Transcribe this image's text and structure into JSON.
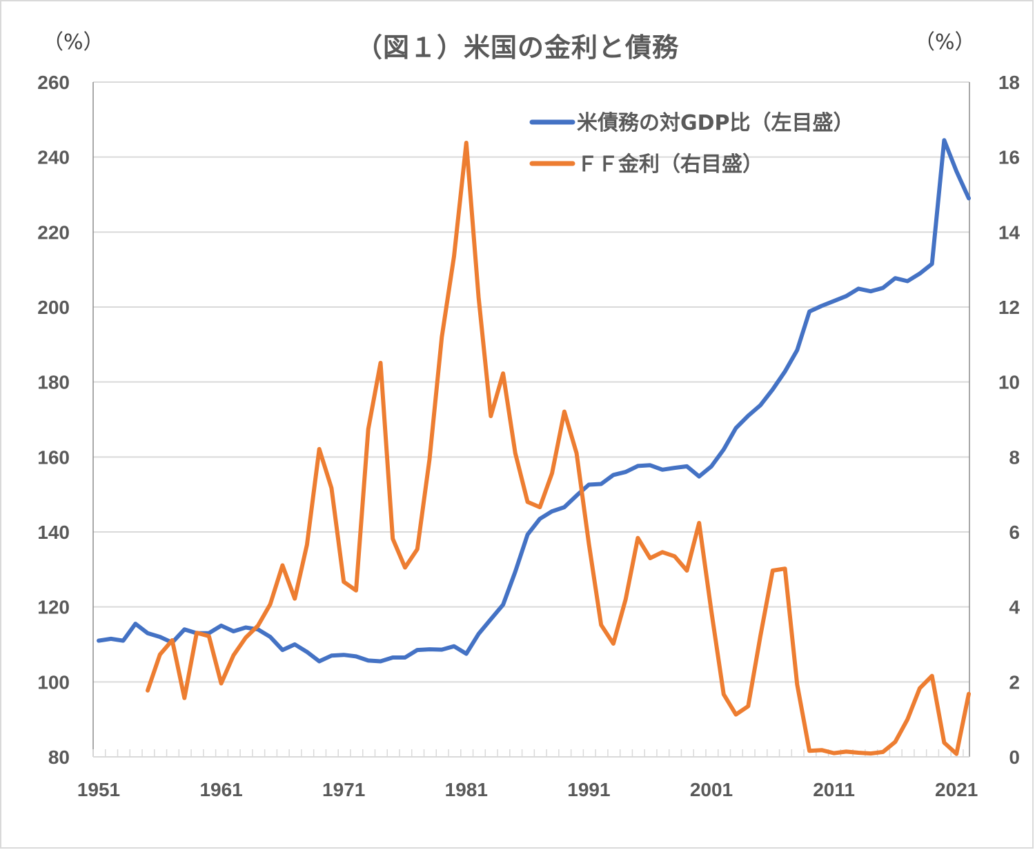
{
  "title": "（図１）米国の金利と債務",
  "left_unit": "（%）",
  "right_unit": "（%）",
  "legend": [
    {
      "label": "米債務の対GDP比（左目盛）",
      "color": "#4472c4"
    },
    {
      "label": "ＦＦ金利（右目盛）",
      "color": "#ed7d31"
    }
  ],
  "colors": {
    "debt": "#4472c4",
    "ff": "#ed7d31",
    "grid": "#d9d9d9",
    "axis_text": "#595959"
  },
  "chart_data": {
    "type": "line",
    "title": "（図１）米国の金利と債務",
    "xlabel": "",
    "ylabel_left": "（%）",
    "ylabel_right": "（%）",
    "ylim_left": [
      80,
      260
    ],
    "ylim_right": [
      0,
      18
    ],
    "yticks_left": [
      80,
      100,
      120,
      140,
      160,
      180,
      200,
      220,
      240,
      260
    ],
    "yticks_right": [
      0,
      2,
      4,
      6,
      8,
      10,
      12,
      14,
      16,
      18
    ],
    "xtick_labels": [
      "1951",
      "1961",
      "1971",
      "1981",
      "1991",
      "2001",
      "2011",
      "2021"
    ],
    "grid": "horizontal",
    "legend_position": "upper right inside",
    "x": [
      1951,
      1952,
      1953,
      1954,
      1955,
      1956,
      1957,
      1958,
      1959,
      1960,
      1961,
      1962,
      1963,
      1964,
      1965,
      1966,
      1967,
      1968,
      1969,
      1970,
      1971,
      1972,
      1973,
      1974,
      1975,
      1976,
      1977,
      1978,
      1979,
      1980,
      1981,
      1982,
      1983,
      1984,
      1985,
      1986,
      1987,
      1988,
      1989,
      1990,
      1991,
      1992,
      1993,
      1994,
      1995,
      1996,
      1997,
      1998,
      1999,
      2000,
      2001,
      2002,
      2003,
      2004,
      2005,
      2006,
      2007,
      2008,
      2009,
      2010,
      2011,
      2012,
      2013,
      2014,
      2015,
      2016,
      2017,
      2018,
      2019,
      2020,
      2021,
      2022
    ],
    "series": [
      {
        "name": "米債務の対GDP比（左目盛）",
        "axis": "left",
        "values": [
          111,
          111.5,
          111,
          115.5,
          113,
          112,
          110.5,
          114,
          113,
          113,
          115,
          113.5,
          114.5,
          114,
          112,
          108.5,
          110,
          108,
          105.5,
          107,
          107.2,
          106.8,
          105.7,
          105.5,
          106.5,
          106.5,
          108.5,
          108.7,
          108.6,
          109.5,
          107.5,
          112.8,
          116.7,
          120.6,
          129.4,
          139.3,
          143.5,
          145.5,
          146.6,
          149.7,
          152.6,
          152.8,
          155.2,
          156,
          157.6,
          157.8,
          156.6,
          157.1,
          157.5,
          154.8,
          157.5,
          162,
          167.7,
          171,
          173.8,
          178,
          182.8,
          188.5,
          198.8,
          200.3,
          201.6,
          202.9,
          204.9,
          204.2,
          205.1,
          207.7,
          206.9,
          208.9,
          211.5,
          244.5,
          236.2,
          229
        ]
      },
      {
        "name": "ＦＦ金利（右目盛）",
        "axis": "right",
        "values": [
          null,
          null,
          null,
          null,
          1.77,
          2.73,
          3.11,
          1.57,
          3.31,
          3.22,
          1.96,
          2.71,
          3.18,
          3.5,
          4.07,
          5.11,
          4.22,
          5.66,
          8.21,
          7.17,
          4.67,
          4.44,
          8.74,
          10.51,
          5.82,
          5.05,
          5.54,
          7.94,
          11.2,
          13.35,
          16.38,
          12.26,
          9.09,
          10.23,
          8.1,
          6.8,
          6.66,
          7.57,
          9.21,
          8.1,
          5.69,
          3.52,
          3.02,
          4.2,
          5.84,
          5.3,
          5.46,
          5.35,
          4.97,
          6.24,
          3.88,
          1.67,
          1.13,
          1.35,
          3.22,
          4.97,
          5.02,
          1.93,
          0.16,
          0.18,
          0.1,
          0.14,
          0.11,
          0.09,
          0.13,
          0.4,
          1.0,
          1.83,
          2.16,
          0.38,
          0.08,
          1.68
        ]
      }
    ]
  }
}
